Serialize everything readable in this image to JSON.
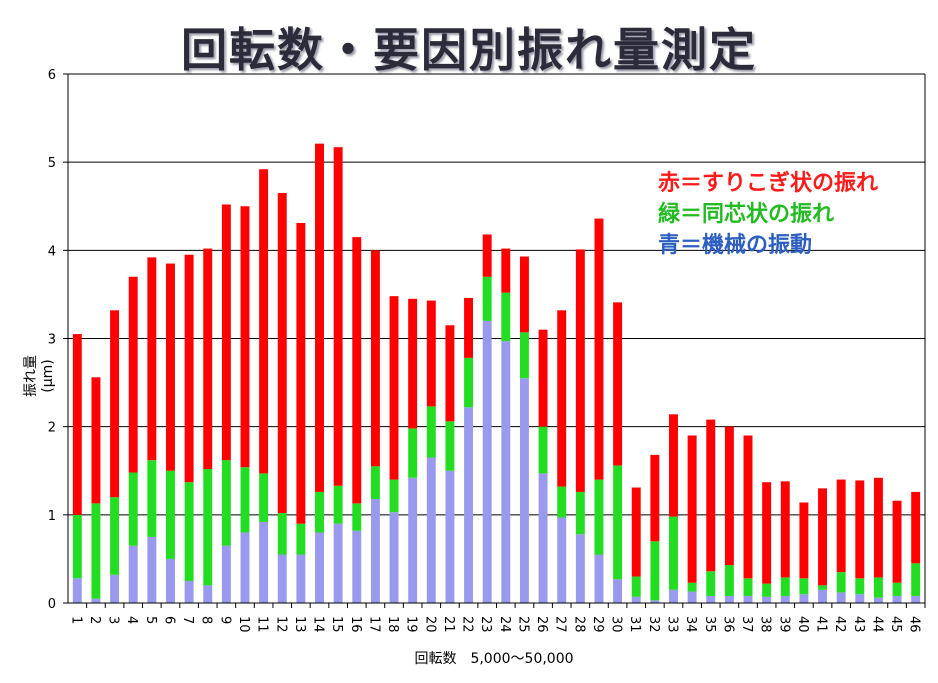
{
  "chart_data": {
    "type": "bar",
    "stacked": true,
    "title": "回転数・要因別振れ量測定",
    "xlabel": "回転数　5,000～50,000",
    "ylabel": "振れ量(μm)",
    "ylim": [
      0,
      6
    ],
    "yticks": [
      "0",
      "1",
      "2",
      "3",
      "4",
      "5",
      "6"
    ],
    "grid": true,
    "legend_position": "top-right",
    "categories": [
      "1",
      "2",
      "3",
      "4",
      "5",
      "6",
      "7",
      "8",
      "9",
      "10",
      "11",
      "12",
      "13",
      "14",
      "15",
      "16",
      "17",
      "18",
      "19",
      "20",
      "21",
      "22",
      "23",
      "24",
      "25",
      "26",
      "27",
      "28",
      "29",
      "30",
      "31",
      "32",
      "33",
      "34",
      "35",
      "36",
      "37",
      "38",
      "39",
      "40",
      "41",
      "42",
      "43",
      "44",
      "45",
      "46"
    ],
    "series": [
      {
        "name": "青＝機械の振動",
        "color": "#9999ee",
        "values": [
          0.28,
          0.05,
          0.32,
          0.65,
          0.75,
          0.5,
          0.25,
          0.2,
          0.65,
          0.8,
          0.92,
          0.55,
          0.55,
          0.8,
          0.9,
          0.82,
          1.18,
          1.03,
          1.42,
          1.65,
          1.5,
          2.22,
          3.2,
          2.97,
          2.55,
          1.47,
          0.97,
          0.78,
          0.55,
          0.27,
          0.07,
          0.03,
          0.15,
          0.13,
          0.08,
          0.08,
          0.08,
          0.07,
          0.08,
          0.1,
          0.15,
          0.12,
          0.1,
          0.06,
          0.08,
          0.08
        ]
      },
      {
        "name": "緑＝同芯状の振れ",
        "color": "#22dd22",
        "values": [
          0.72,
          1.08,
          0.88,
          0.83,
          0.87,
          1.0,
          1.12,
          1.32,
          0.97,
          0.74,
          0.55,
          0.47,
          0.35,
          0.46,
          0.43,
          0.31,
          0.37,
          0.37,
          0.56,
          0.58,
          0.56,
          0.56,
          0.5,
          0.55,
          0.52,
          0.53,
          0.35,
          0.48,
          0.85,
          1.29,
          0.23,
          0.67,
          0.83,
          0.1,
          0.28,
          0.35,
          0.2,
          0.15,
          0.21,
          0.18,
          0.05,
          0.23,
          0.18,
          0.23,
          0.15,
          0.37
        ]
      },
      {
        "name": "赤＝すりこぎ状の振れ",
        "color": "#ff0000",
        "values": [
          2.05,
          1.43,
          2.12,
          2.22,
          2.3,
          2.35,
          2.58,
          2.5,
          2.9,
          2.96,
          3.45,
          3.63,
          3.41,
          3.95,
          3.84,
          3.02,
          2.45,
          2.08,
          1.47,
          1.2,
          1.09,
          0.68,
          0.48,
          0.5,
          0.86,
          1.1,
          2.0,
          2.75,
          2.96,
          1.85,
          1.01,
          0.98,
          1.16,
          1.67,
          1.72,
          1.57,
          1.62,
          1.15,
          1.09,
          0.86,
          1.1,
          1.05,
          1.11,
          1.13,
          0.93,
          0.81
        ]
      }
    ]
  }
}
